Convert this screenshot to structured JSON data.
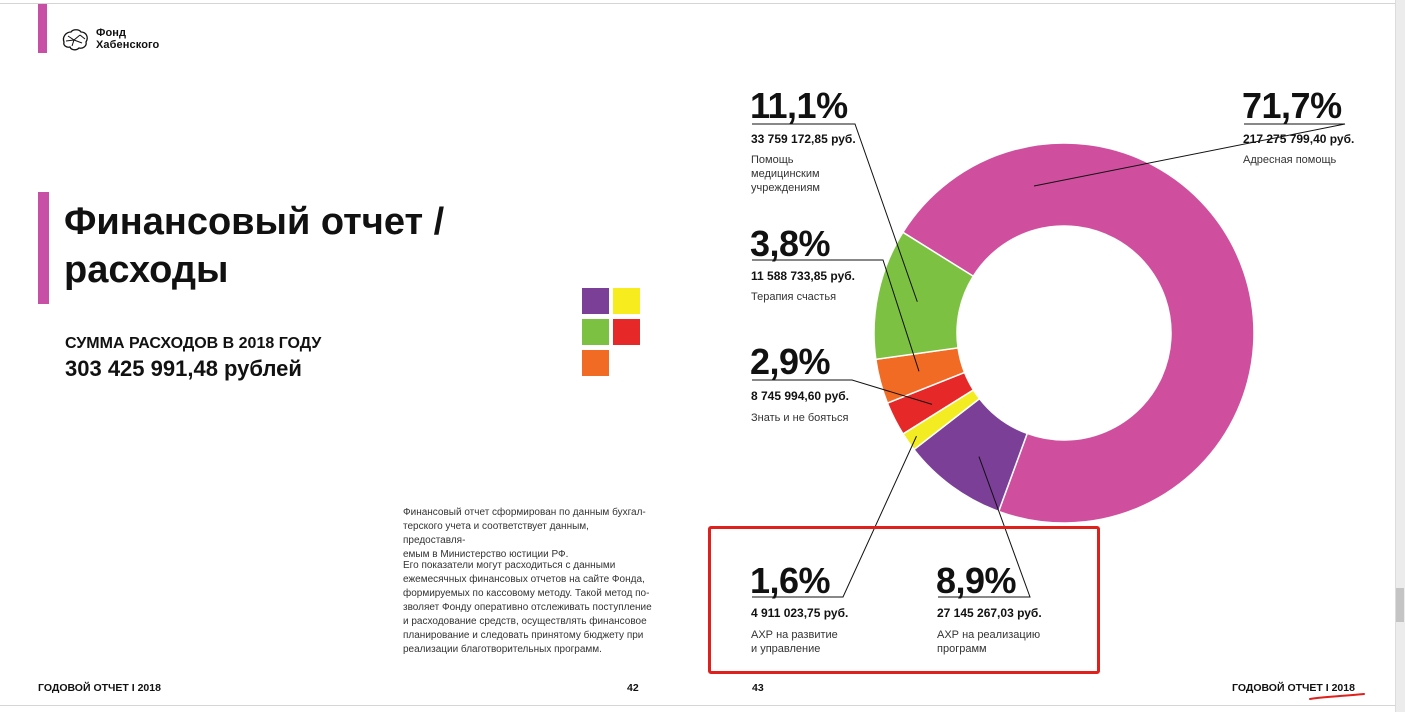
{
  "logo": {
    "line1": "Фонд",
    "line2": "Хабенского"
  },
  "title": {
    "line1": "Финансовый отчет /",
    "line2": "расходы"
  },
  "summary": {
    "label": "СУММА РАСХОДОВ В 2018 ГОДУ",
    "value": "303 425 991,48 рублей"
  },
  "swatches": [
    "#7b3f98",
    "#f7ec1e",
    "#7dc142",
    "#e62828",
    "#f26b24"
  ],
  "notes": {
    "p1": [
      "Финансовый отчет сформирован по данным бухгал-",
      "терского учета и соответствует данным, предоставля-",
      "емым в Министерство юстиции РФ."
    ],
    "p2": [
      "Его показатели могут расходиться с данными",
      "ежемесячных финансовых отчетов на сайте Фонда,",
      "формируемых по кассовому методу. Такой метод по-",
      "зволяет Фонду оперативно отслеживать поступление",
      "и расходование средств, осуществлять финансовое",
      "планирование и следовать принятому бюджету при",
      "реализации благотворительных программ."
    ]
  },
  "footer": {
    "left": "ГОДОВОЙ ОТЧЕТ I 2018",
    "page_left": "42",
    "page_right": "43",
    "right_a": "ГОДОВОЙ ОТЧЕТ",
    "right_b": "I 2018"
  },
  "chart_data": {
    "type": "pie",
    "variant": "donut",
    "slices": [
      {
        "key": "addr",
        "label": "Адресная помощь",
        "percent_label": "71,7%",
        "value": 71.7,
        "amount": "217 275 799,40 руб.",
        "color": "#cf4f9e"
      },
      {
        "key": "axr_prog",
        "label": "АХР на реализацию программ",
        "percent_label": "8,9%",
        "value": 8.9,
        "amount": "27 145 267,03 руб.",
        "color": "#7b3f98"
      },
      {
        "key": "axr_dev",
        "label": "АХР на развитие и управление",
        "percent_label": "1,6%",
        "value": 1.6,
        "amount": "4 911 023,75 руб.",
        "color": "#f4ec22"
      },
      {
        "key": "znat",
        "label": "Знать и не бояться",
        "percent_label": "2,9%",
        "value": 2.9,
        "amount": "8 745 994,60 руб.",
        "color": "#e62828"
      },
      {
        "key": "terapia",
        "label": "Терапия счастья",
        "percent_label": "3,8%",
        "value": 3.8,
        "amount": "11 588 733,85 руб.",
        "color": "#f26b24"
      },
      {
        "key": "med",
        "label": "Помощь медицинским учреждениям",
        "percent_label": "11,1%",
        "value": 11.1,
        "amount": "33 759 172,85 руб.",
        "color": "#7dc142"
      }
    ],
    "callouts": {
      "med": {
        "lines": [
          "Помощь",
          "медицинским",
          "учреждениям"
        ]
      },
      "addr": {
        "lines": [
          "Адресная помощь"
        ]
      },
      "terapia": {
        "lines": [
          "Терапия счастья"
        ]
      },
      "znat": {
        "lines": [
          "Знать и не бояться"
        ]
      },
      "axr_dev": {
        "lines": [
          "АХР на развитие",
          "и управление"
        ]
      },
      "axr_prog": {
        "lines": [
          "АХР на реализацию",
          "программ"
        ]
      }
    }
  }
}
